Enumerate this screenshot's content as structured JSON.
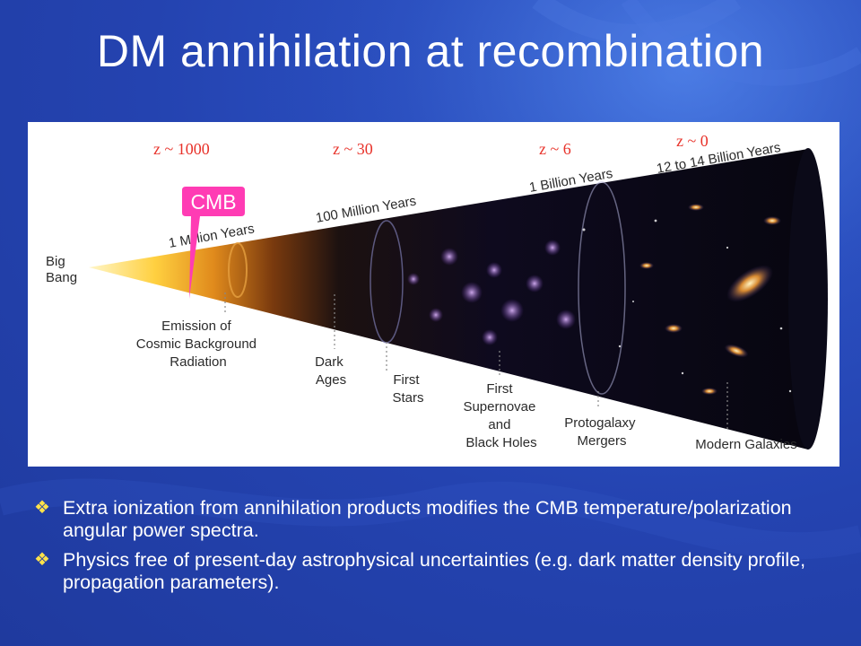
{
  "slide": {
    "title": "DM annihilation at recombination",
    "accent_color": "#ffe24a",
    "background_color": "#2443b0"
  },
  "figure": {
    "redshift_labels": [
      "z ~ 1000",
      "z ~ 30",
      "z ~ 6",
      "z ~ 0"
    ],
    "redshift_color": "#e8322a",
    "callout": {
      "text": "CMB",
      "color": "#ff3cb4"
    },
    "time_labels": [
      "1 Million Years",
      "100 Million Years",
      "1 Billion Years",
      "12 to 14  Billion Years"
    ],
    "start_label": [
      "Big",
      "Bang"
    ],
    "epoch_labels": [
      [
        "Emission of",
        "Cosmic Background",
        "Radiation"
      ],
      [
        "Dark",
        "Ages"
      ],
      [
        "First",
        "Stars"
      ],
      [
        "First",
        "Supernovae",
        "and",
        "Black Holes"
      ],
      [
        "Protogalaxy",
        "Mergers"
      ],
      [
        "Modern Galaxies"
      ]
    ]
  },
  "bullets": [
    {
      "icon": "diamond-bullet-icon",
      "text": "Extra ionization from annihilation products modifies the CMB temperature/polarization angular power spectra."
    },
    {
      "icon": "diamond-bullet-icon",
      "text": "Physics free of present-day astrophysical uncertainties (e.g. dark matter density profile, propagation parameters)."
    }
  ]
}
